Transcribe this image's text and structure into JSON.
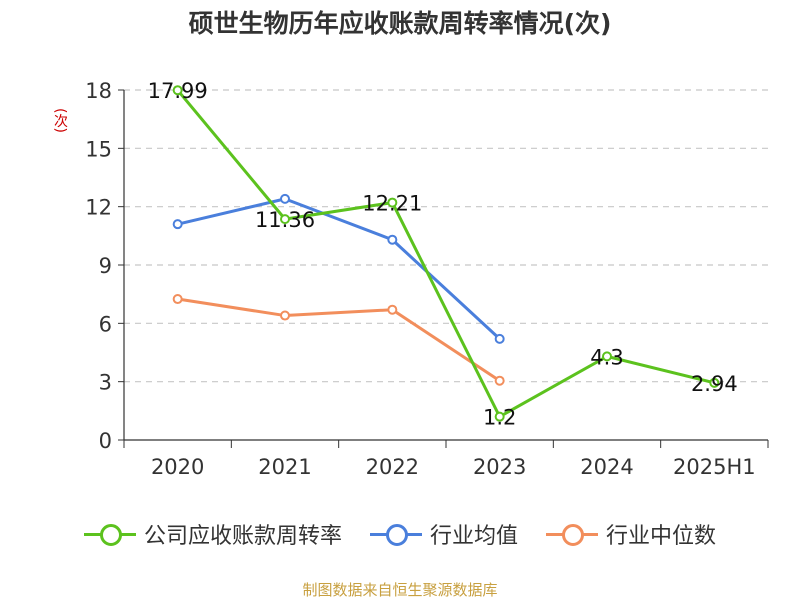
{
  "chart_data": {
    "type": "line",
    "title": "硕世生物历年应收账款周转率情况(次)",
    "ylabel": "(次)",
    "categories": [
      "2020",
      "2021",
      "2022",
      "2023",
      "2024",
      "2025H1"
    ],
    "ylim": [
      0,
      18
    ],
    "yticks": [
      0,
      3,
      6,
      9,
      12,
      15,
      18
    ],
    "grid": true,
    "legend_position": "bottom",
    "series": [
      {
        "name": "公司应收账款周转率",
        "color": "#5cc21e",
        "values": [
          17.99,
          11.36,
          12.21,
          1.2,
          4.3,
          2.94
        ],
        "labels": [
          "17.99",
          "11.36",
          "12.21",
          "1.2",
          "4.3",
          "2.94"
        ]
      },
      {
        "name": "行业均值",
        "color": "#4a7fdc",
        "values": [
          11.1,
          12.4,
          10.3,
          5.2,
          null,
          null
        ]
      },
      {
        "name": "行业中位数",
        "color": "#f28e5c",
        "values": [
          7.25,
          6.4,
          6.7,
          3.05,
          null,
          null
        ]
      }
    ],
    "source": "制图数据来自恒生聚源数据库"
  }
}
